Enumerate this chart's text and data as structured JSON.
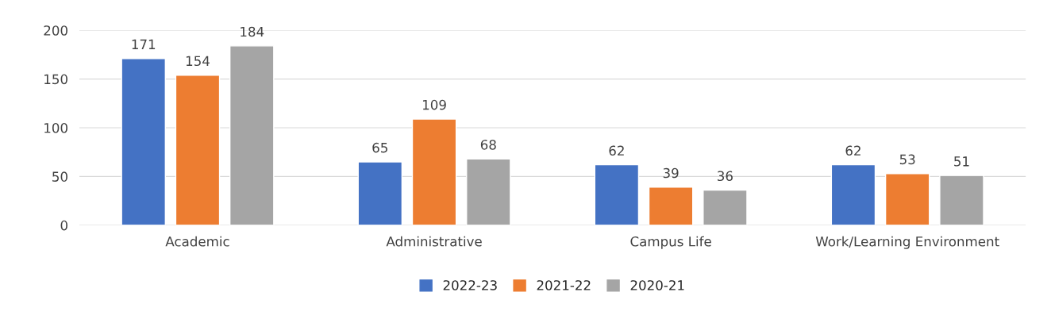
{
  "chart_data": {
    "type": "bar",
    "categories": [
      "Academic",
      "Administrative",
      "Campus Life",
      "Work/Learning Environment"
    ],
    "series": [
      {
        "name": "2022-23",
        "color": "#4472c4",
        "values": [
          171,
          65,
          62,
          62
        ]
      },
      {
        "name": "2021-22",
        "color": "#ed7d31",
        "values": [
          154,
          109,
          39,
          53
        ]
      },
      {
        "name": "2020-21",
        "color": "#a5a5a5",
        "values": [
          184,
          68,
          36,
          51
        ]
      }
    ],
    "ylim": [
      0,
      200
    ],
    "yticks": [
      0,
      50,
      100,
      150,
      200
    ],
    "grid": "y",
    "legend": "bottom",
    "data_labels": true
  }
}
